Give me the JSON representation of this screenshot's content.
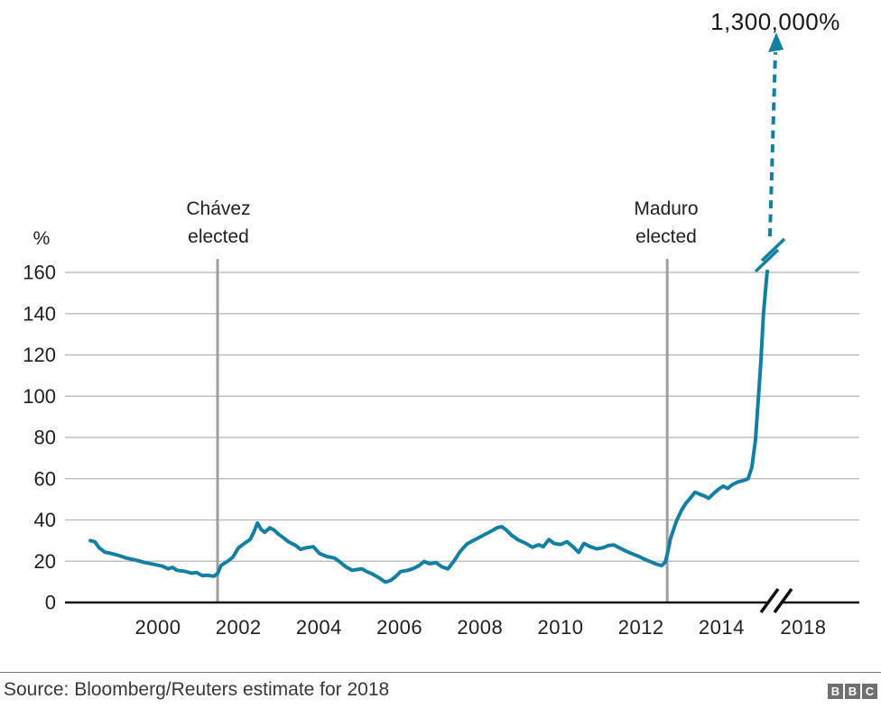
{
  "chart_data": {
    "type": "line",
    "title": "",
    "unit_label": "%",
    "ylabel": "%",
    "xlabel": "",
    "ylim": [
      0,
      160
    ],
    "grid": "horizontal",
    "y_ticks": [
      0,
      20,
      40,
      60,
      80,
      100,
      120,
      140,
      160
    ],
    "x_ticks": [
      {
        "label": "2000",
        "year": 2000
      },
      {
        "label": "2002",
        "year": 2002
      },
      {
        "label": "2004",
        "year": 2004
      },
      {
        "label": "2006",
        "year": 2006
      },
      {
        "label": "2008",
        "year": 2008
      },
      {
        "label": "2010",
        "year": 2010
      },
      {
        "label": "2012",
        "year": 2012
      },
      {
        "label": "2014",
        "year": 2014
      },
      {
        "label": "2018",
        "year": 2018,
        "after_break": true
      }
    ],
    "axis_break": {
      "x_axis": true,
      "line_break": true,
      "note": "scale breaks after 2015; 2018 value off-scale"
    },
    "series": [
      {
        "name": "venezuela-annual-inflation-percent",
        "points": [
          [
            1998.32,
            30.0
          ],
          [
            1998.43,
            29.4
          ],
          [
            1998.54,
            26.5
          ],
          [
            1998.68,
            24.4
          ],
          [
            1998.83,
            23.8
          ],
          [
            1998.99,
            23.0
          ],
          [
            1999.22,
            21.5
          ],
          [
            1999.44,
            20.6
          ],
          [
            1999.66,
            19.4
          ],
          [
            1999.89,
            18.5
          ],
          [
            2000.11,
            17.6
          ],
          [
            2000.25,
            16.3
          ],
          [
            2000.36,
            17.0
          ],
          [
            2000.47,
            15.6
          ],
          [
            2000.67,
            15.1
          ],
          [
            2000.83,
            14.2
          ],
          [
            2000.96,
            14.5
          ],
          [
            2001.1,
            13.0
          ],
          [
            2001.23,
            13.2
          ],
          [
            2001.39,
            12.7
          ],
          [
            2001.48,
            14.0
          ],
          [
            2001.57,
            18.0
          ],
          [
            2001.73,
            20.0
          ],
          [
            2001.86,
            22.0
          ],
          [
            2002.0,
            26.5
          ],
          [
            2002.15,
            28.7
          ],
          [
            2002.29,
            30.5
          ],
          [
            2002.38,
            34.0
          ],
          [
            2002.47,
            38.5
          ],
          [
            2002.56,
            35.5
          ],
          [
            2002.65,
            34.0
          ],
          [
            2002.78,
            36.2
          ],
          [
            2002.89,
            35.0
          ],
          [
            2003.0,
            33.0
          ],
          [
            2003.12,
            31.3
          ],
          [
            2003.25,
            29.3
          ],
          [
            2003.41,
            27.8
          ],
          [
            2003.54,
            25.8
          ],
          [
            2003.7,
            26.6
          ],
          [
            2003.86,
            27.0
          ],
          [
            2004.01,
            23.8
          ],
          [
            2004.19,
            22.3
          ],
          [
            2004.39,
            21.5
          ],
          [
            2004.53,
            19.5
          ],
          [
            2004.66,
            17.4
          ],
          [
            2004.82,
            15.6
          ],
          [
            2004.96,
            16.0
          ],
          [
            2005.07,
            16.3
          ],
          [
            2005.18,
            15.0
          ],
          [
            2005.31,
            14.0
          ],
          [
            2005.47,
            12.2
          ],
          [
            2005.65,
            9.9
          ],
          [
            2005.78,
            10.7
          ],
          [
            2005.9,
            12.5
          ],
          [
            2006.03,
            15.0
          ],
          [
            2006.21,
            15.6
          ],
          [
            2006.34,
            16.5
          ],
          [
            2006.48,
            17.8
          ],
          [
            2006.61,
            19.9
          ],
          [
            2006.75,
            18.8
          ],
          [
            2006.91,
            19.3
          ],
          [
            2007.04,
            17.4
          ],
          [
            2007.2,
            16.3
          ],
          [
            2007.35,
            20.0
          ],
          [
            2007.51,
            24.8
          ],
          [
            2007.67,
            28.3
          ],
          [
            2007.83,
            30.0
          ],
          [
            2007.98,
            31.5
          ],
          [
            2008.14,
            33.2
          ],
          [
            2008.3,
            34.8
          ],
          [
            2008.43,
            36.3
          ],
          [
            2008.54,
            36.7
          ],
          [
            2008.65,
            35.2
          ],
          [
            2008.79,
            32.5
          ],
          [
            2008.95,
            30.3
          ],
          [
            2009.13,
            28.7
          ],
          [
            2009.3,
            26.8
          ],
          [
            2009.46,
            28.0
          ],
          [
            2009.57,
            27.0
          ],
          [
            2009.71,
            30.5
          ],
          [
            2009.84,
            28.6
          ],
          [
            2010.0,
            28.1
          ],
          [
            2010.16,
            29.4
          ],
          [
            2010.31,
            27.0
          ],
          [
            2010.45,
            24.3
          ],
          [
            2010.58,
            28.6
          ],
          [
            2010.74,
            27.0
          ],
          [
            2010.9,
            26.0
          ],
          [
            2011.05,
            26.5
          ],
          [
            2011.19,
            27.6
          ],
          [
            2011.32,
            27.9
          ],
          [
            2011.48,
            26.3
          ],
          [
            2011.64,
            24.8
          ],
          [
            2011.79,
            23.5
          ],
          [
            2011.95,
            22.3
          ],
          [
            2012.08,
            21.0
          ],
          [
            2012.22,
            19.9
          ],
          [
            2012.38,
            18.6
          ],
          [
            2012.51,
            17.9
          ],
          [
            2012.6,
            19.5
          ],
          [
            2012.67,
            25.0
          ],
          [
            2012.73,
            31.0
          ],
          [
            2012.8,
            35.0
          ],
          [
            2012.89,
            40.0
          ],
          [
            2013.0,
            44.5
          ],
          [
            2013.11,
            48.0
          ],
          [
            2013.22,
            50.5
          ],
          [
            2013.34,
            53.4
          ],
          [
            2013.48,
            52.3
          ],
          [
            2013.59,
            51.5
          ],
          [
            2013.68,
            50.5
          ],
          [
            2013.79,
            52.6
          ],
          [
            2013.92,
            54.8
          ],
          [
            2014.04,
            56.4
          ],
          [
            2014.15,
            55.3
          ],
          [
            2014.26,
            57.0
          ],
          [
            2014.39,
            58.3
          ],
          [
            2014.53,
            59.0
          ],
          [
            2014.66,
            60.0
          ],
          [
            2014.75,
            65.5
          ],
          [
            2014.84,
            78.5
          ],
          [
            2014.91,
            98.0
          ],
          [
            2014.98,
            118.0
          ],
          [
            2015.04,
            140.0
          ],
          [
            2015.13,
            160.0
          ],
          [
            2015.16,
            162.5
          ]
        ]
      }
    ],
    "annotations": [
      {
        "id": "chavez",
        "lines": [
          "Chávez",
          "elected"
        ],
        "year": 2001.48
      },
      {
        "id": "maduro",
        "lines": [
          "Maduro",
          "elected"
        ],
        "year": 2012.65
      }
    ],
    "callout": {
      "label": "1,300,000%",
      "meaning": "estimated 2018 inflation, off the chart scale"
    },
    "colors": {
      "line": "#1380a1",
      "grid": "#b4b4b4",
      "axis": "#111111",
      "annotation_line": "#9f9f9f",
      "text": "#1f1f1f"
    }
  },
  "footer": {
    "source": "Source: Bloomberg/Reuters estimate for 2018",
    "logo_letters": [
      "B",
      "B",
      "C"
    ]
  }
}
